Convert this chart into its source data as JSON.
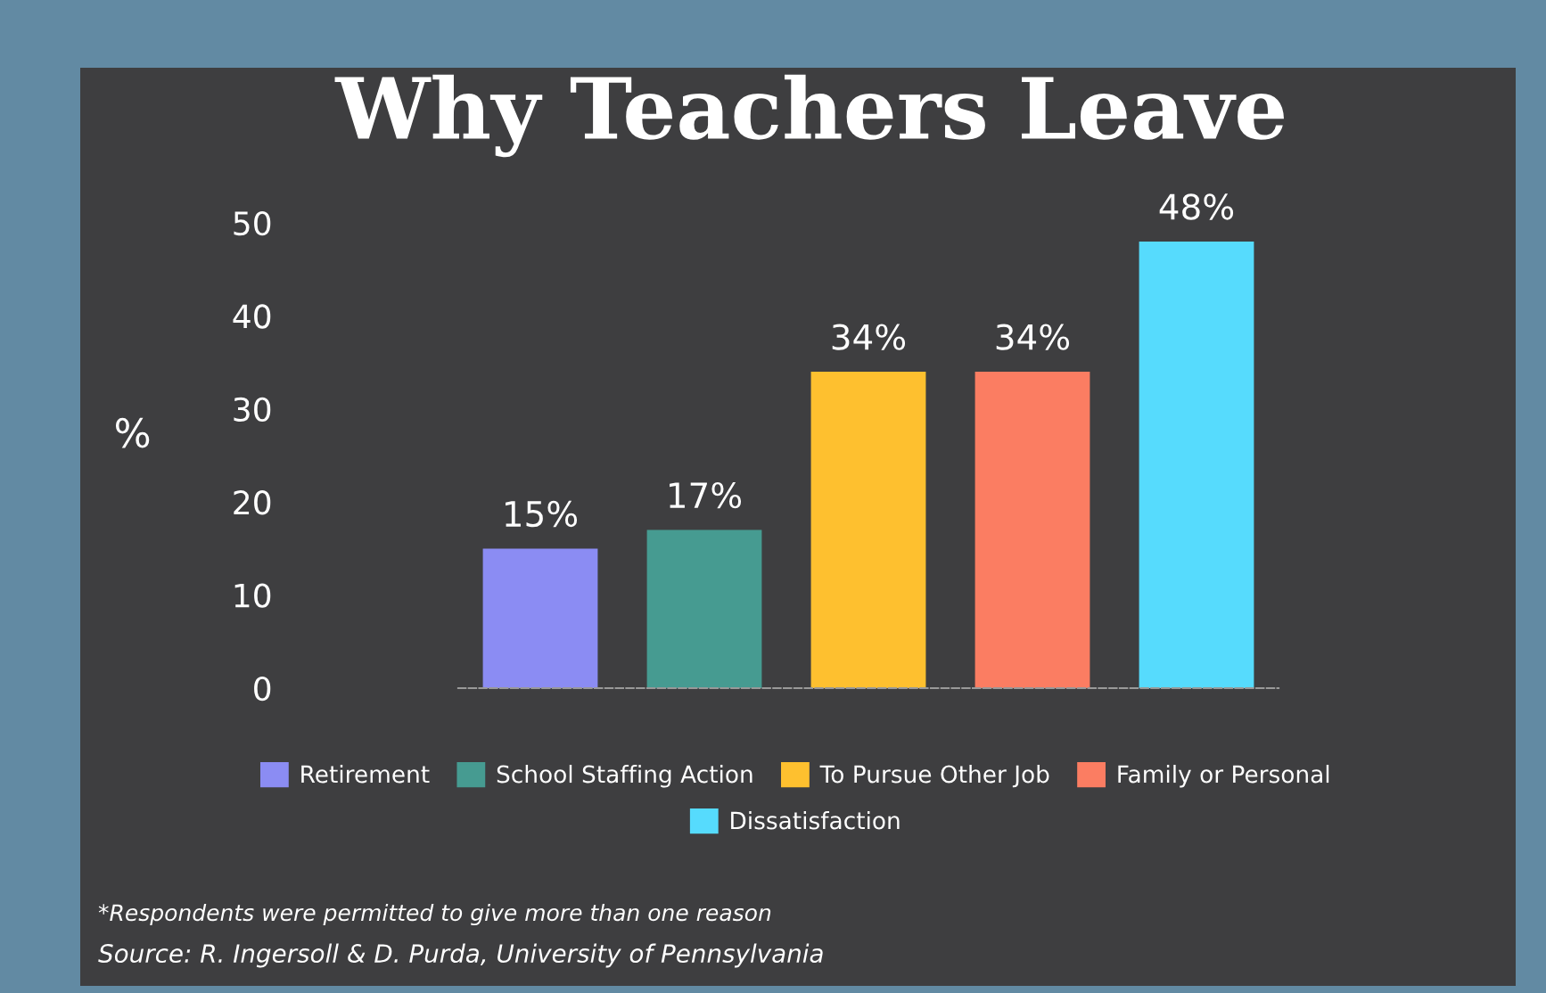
{
  "chart_data": {
    "type": "bar",
    "title": "Why Teachers Leave",
    "ylabel": "%",
    "categories": [
      null,
      null,
      null,
      null,
      null
    ],
    "series": [
      {
        "name": "Retirement",
        "color": "#8b8cf3",
        "values": [
          15,
          null,
          null,
          null,
          null
        ],
        "value_labels": [
          "15%",
          null,
          null,
          null,
          null
        ]
      },
      {
        "name": "School Staffing Action",
        "color": "#469b91",
        "values": [
          null,
          17,
          null,
          null,
          null
        ],
        "value_labels": [
          null,
          "17%",
          null,
          null,
          null
        ]
      },
      {
        "name": "To Pursue Other Job",
        "color": "#fec02f",
        "values": [
          null,
          null,
          34,
          null,
          null
        ],
        "value_labels": [
          null,
          null,
          "34%",
          null,
          null
        ]
      },
      {
        "name": "Family or Personal",
        "color": "#fb7d62",
        "values": [
          null,
          null,
          null,
          34,
          null
        ],
        "value_labels": [
          null,
          null,
          null,
          "34%",
          null
        ]
      },
      {
        "name": "Dissatisfaction",
        "color": "#56dbfd",
        "values": [
          null,
          null,
          null,
          null,
          48
        ],
        "value_labels": [
          null,
          null,
          null,
          null,
          "48%"
        ]
      }
    ],
    "stacked": true,
    "ylim": [
      0,
      50
    ],
    "yticks": [
      0,
      10,
      20,
      30,
      40,
      50
    ],
    "grid": false,
    "legend": "bottom",
    "tick_labels": "y",
    "annotations": [
      "*Respondents were permitted to give more than one reason",
      "Source: R. Ingersoll & D. Purda, University of Pennsylvania"
    ]
  }
}
